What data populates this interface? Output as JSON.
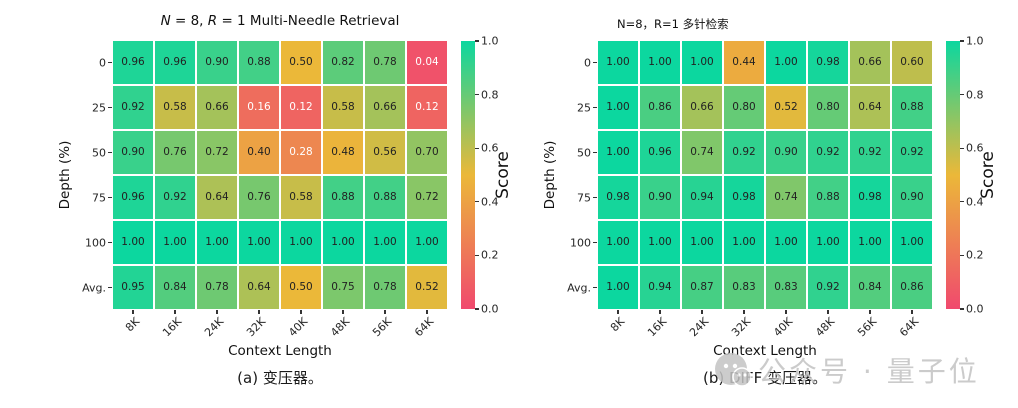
{
  "chart_data": [
    {
      "type": "heatmap",
      "title": "N = 8, R = 1 Multi-Needle Retrieval",
      "title_parts": [
        "N",
        " = 8, ",
        "R",
        " = 1 Multi-Needle Retrieval"
      ],
      "caption": "(a) 变压器。",
      "xlabel": "Context Length",
      "ylabel": "Depth (%)",
      "x": [
        "8K",
        "16K",
        "24K",
        "32K",
        "40K",
        "48K",
        "56K",
        "64K"
      ],
      "y": [
        "0",
        "25",
        "50",
        "75",
        "100",
        "Avg."
      ],
      "values": [
        [
          0.96,
          0.96,
          0.9,
          0.88,
          0.5,
          0.82,
          0.78,
          0.04
        ],
        [
          0.92,
          0.58,
          0.66,
          0.16,
          0.12,
          0.58,
          0.66,
          0.12
        ],
        [
          0.9,
          0.76,
          0.72,
          0.4,
          0.28,
          0.48,
          0.56,
          0.7
        ],
        [
          0.96,
          0.92,
          0.64,
          0.76,
          0.58,
          0.88,
          0.88,
          0.72
        ],
        [
          1.0,
          1.0,
          1.0,
          1.0,
          1.0,
          1.0,
          1.0,
          1.0
        ],
        [
          0.95,
          0.84,
          0.78,
          0.64,
          0.5,
          0.75,
          0.78,
          0.52
        ]
      ],
      "vmin": 0.0,
      "vmax": 1.0,
      "grid_gap": "white",
      "colorbar": {
        "label": "Score",
        "ticks": [
          "1.0",
          "0.8",
          "0.6",
          "0.4",
          "0.2",
          "0.0"
        ],
        "position": "right"
      }
    },
    {
      "type": "heatmap",
      "title": "N=8，R=1 多针检索",
      "caption": "(b) DIFF 变压器。",
      "xlabel": "Context Length",
      "ylabel": "Depth (%)",
      "x": [
        "8K",
        "16K",
        "24K",
        "32K",
        "40K",
        "48K",
        "56K",
        "64K"
      ],
      "y": [
        "0",
        "25",
        "50",
        "75",
        "100",
        "Avg."
      ],
      "values": [
        [
          1.0,
          1.0,
          1.0,
          0.44,
          1.0,
          0.98,
          0.66,
          0.6
        ],
        [
          1.0,
          0.86,
          0.66,
          0.8,
          0.52,
          0.8,
          0.64,
          0.88
        ],
        [
          1.0,
          0.96,
          0.74,
          0.92,
          0.9,
          0.92,
          0.92,
          0.92
        ],
        [
          0.98,
          0.9,
          0.94,
          0.98,
          0.74,
          0.88,
          0.98,
          0.9
        ],
        [
          1.0,
          1.0,
          1.0,
          1.0,
          1.0,
          1.0,
          1.0,
          1.0
        ],
        [
          1.0,
          0.94,
          0.87,
          0.83,
          0.83,
          0.92,
          0.84,
          0.86
        ]
      ],
      "vmin": 0.0,
      "vmax": 1.0,
      "grid_gap": "white",
      "colorbar": {
        "label": "Score",
        "ticks": [
          "1.0",
          "0.8",
          "0.6",
          "0.4",
          "0.2",
          "0.0"
        ],
        "position": "right"
      }
    }
  ],
  "colors": {
    "cmap_stops": [
      [
        0,
        "#F0496E"
      ],
      [
        0.5,
        "#EBB839"
      ],
      [
        1,
        "#0CD79F"
      ]
    ],
    "cell_text_dark": "#222222",
    "cell_text_light": "#ffffff",
    "white_text_below": 0.3,
    "watermark": "#c3c3c3"
  },
  "watermark": {
    "text": "公众号 · 量子位",
    "logo": "quantum-bit-logo"
  }
}
